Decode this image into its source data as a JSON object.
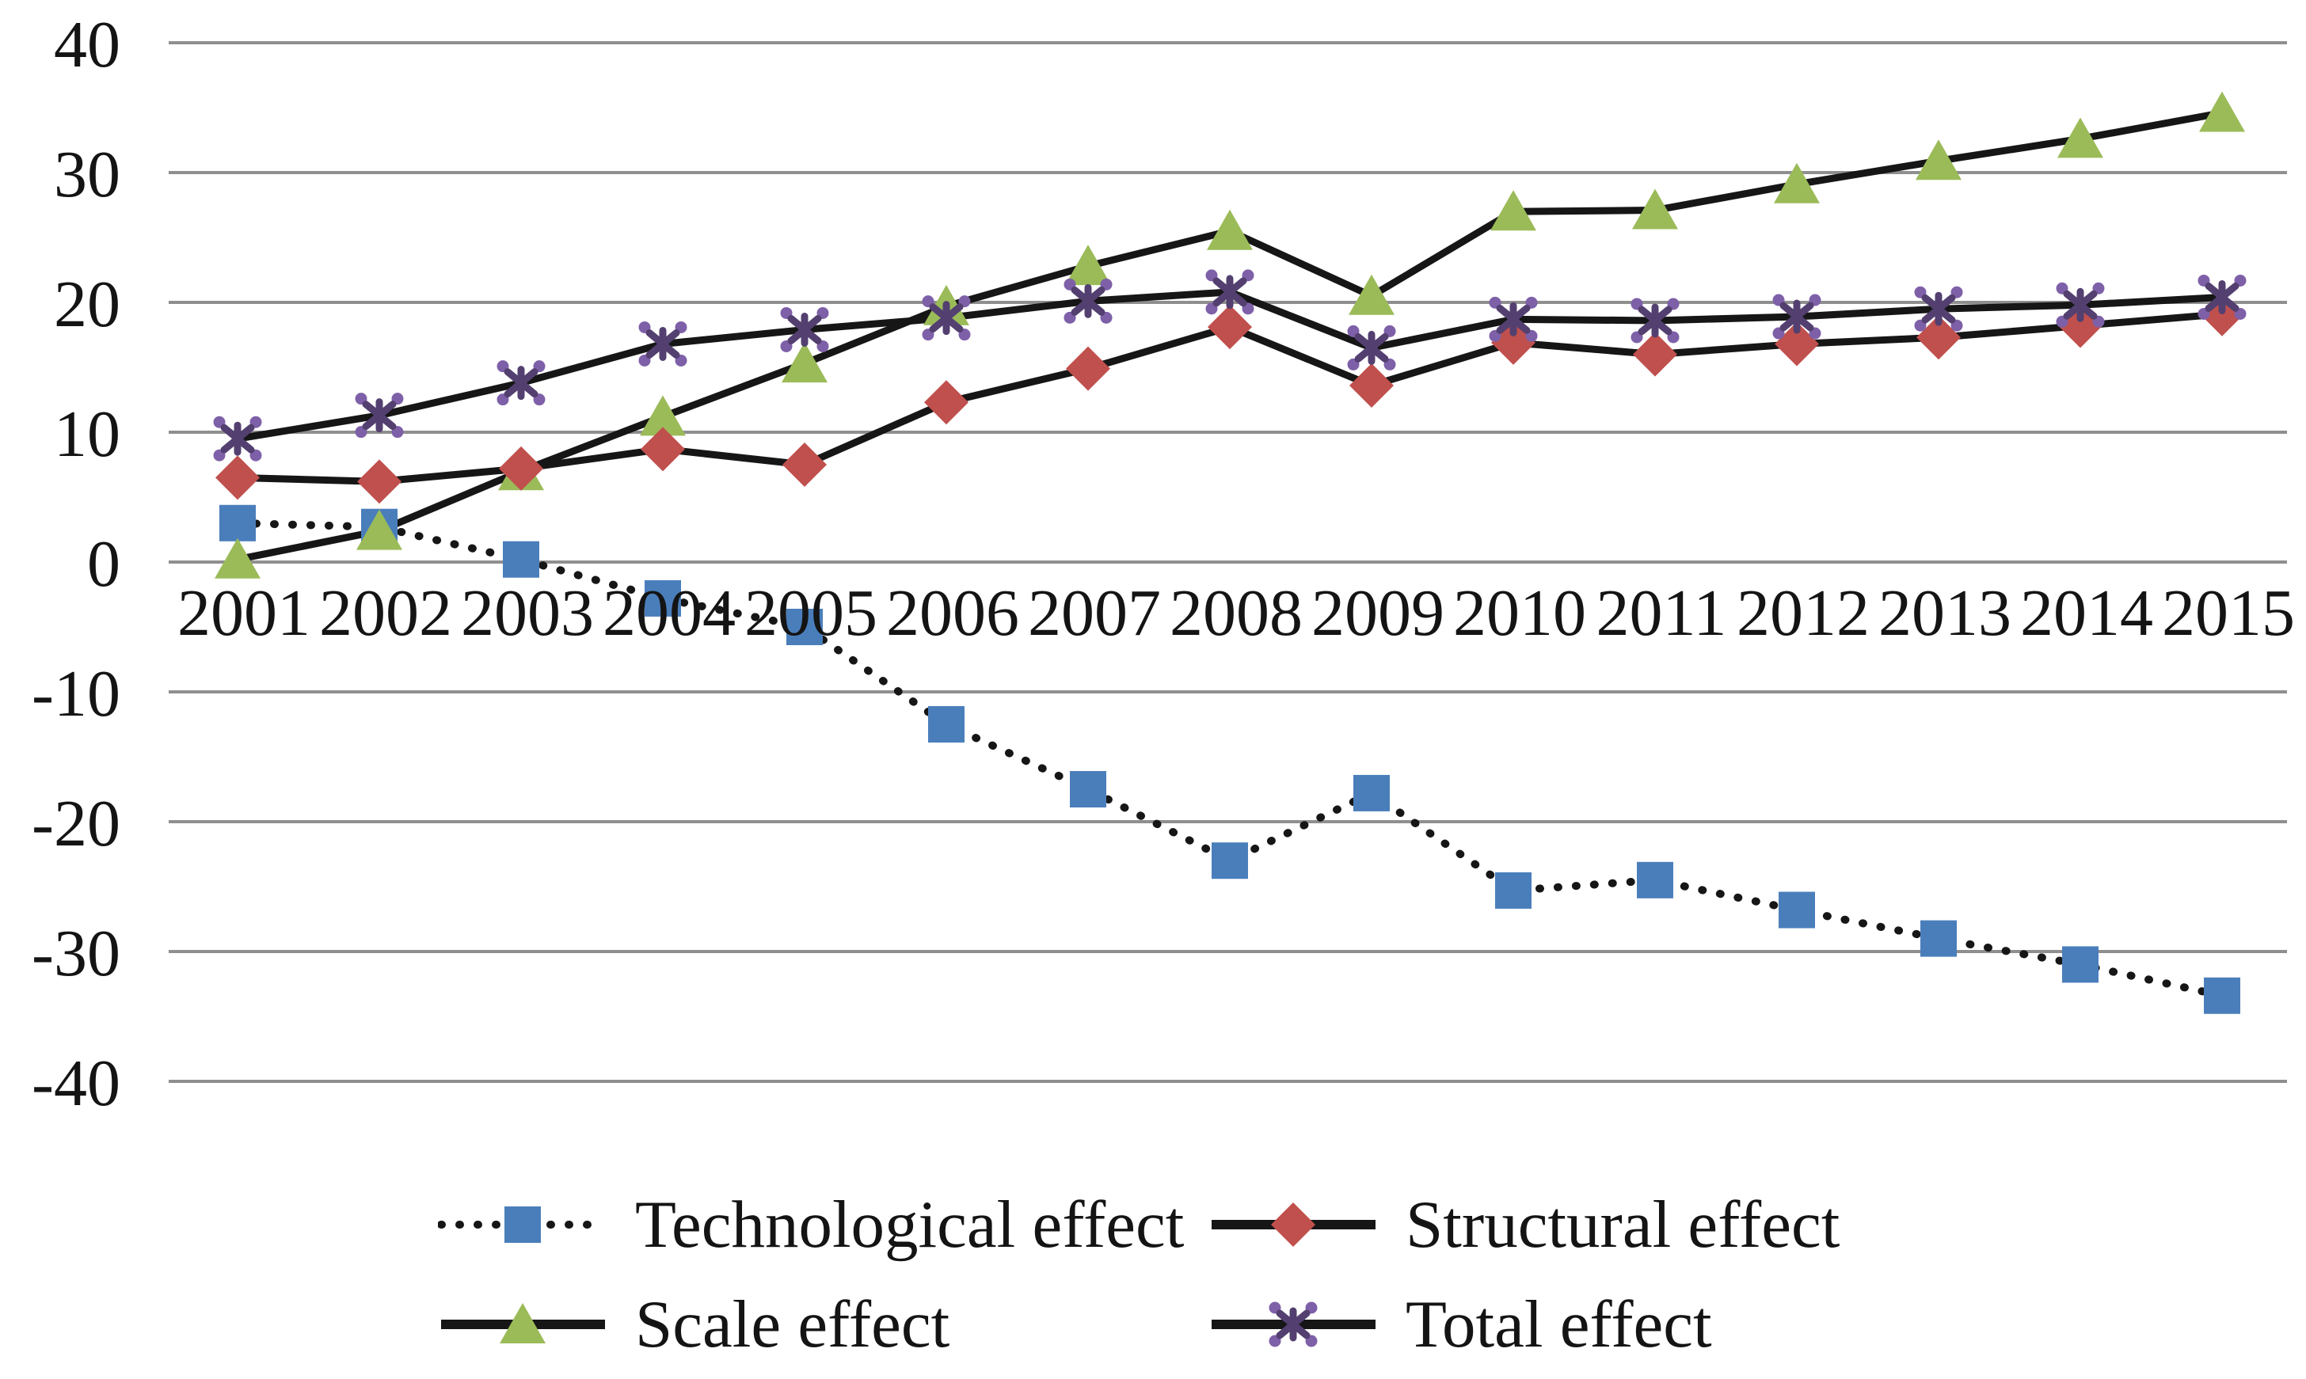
{
  "figure": {
    "background": "#ffffff"
  },
  "chart_data": {
    "type": "line",
    "title": "",
    "xlabel": "",
    "ylabel": "",
    "categories": [
      "2001",
      "2002",
      "2003",
      "2004",
      "2005",
      "2006",
      "2007",
      "2008",
      "2009",
      "2010",
      "2011",
      "2012",
      "2013",
      "2014",
      "2015"
    ],
    "y_ticks": [
      40,
      30,
      20,
      10,
      0,
      -10,
      -20,
      -30,
      -40
    ],
    "ylim": [
      -40,
      40
    ],
    "grid": true,
    "legend_position": "bottom",
    "x_axis_labels_at": "zero-line",
    "colors": {
      "gridline": "#8f8f8f",
      "series_line": "#161616",
      "text": "#141414"
    },
    "series": [
      {
        "name": "Technological effect",
        "marker": "square",
        "marker_color": "#4a7ebb",
        "line_style": "dotted",
        "values": [
          3.0,
          2.7,
          0.2,
          -2.8,
          -5.0,
          -12.5,
          -17.5,
          -23.0,
          -17.8,
          -25.3,
          -24.5,
          -26.8,
          -29.0,
          -31.0,
          -33.4
        ]
      },
      {
        "name": "Structural effect",
        "marker": "diamond",
        "marker_color": "#c0504d",
        "line_style": "solid",
        "values": [
          6.5,
          6.2,
          7.2,
          8.7,
          7.5,
          12.3,
          14.9,
          18.1,
          13.6,
          16.9,
          16.0,
          16.8,
          17.3,
          18.2,
          19.1
        ]
      },
      {
        "name": "Scale effect",
        "marker": "triangle",
        "marker_color": "#9bbb59",
        "line_style": "solid",
        "values": [
          0.2,
          2.4,
          7.0,
          11.2,
          15.3,
          19.7,
          22.8,
          25.5,
          20.5,
          27.0,
          27.1,
          29.1,
          30.9,
          32.6,
          34.6
        ]
      },
      {
        "name": "Total effect",
        "marker": "asterisk",
        "marker_color": "#534070",
        "marker_dot_color": "#7e60a8",
        "line_style": "solid",
        "values": [
          9.5,
          11.3,
          13.8,
          16.8,
          17.9,
          18.8,
          20.1,
          20.8,
          16.5,
          18.7,
          18.6,
          18.9,
          19.5,
          19.8,
          20.4
        ]
      }
    ]
  }
}
